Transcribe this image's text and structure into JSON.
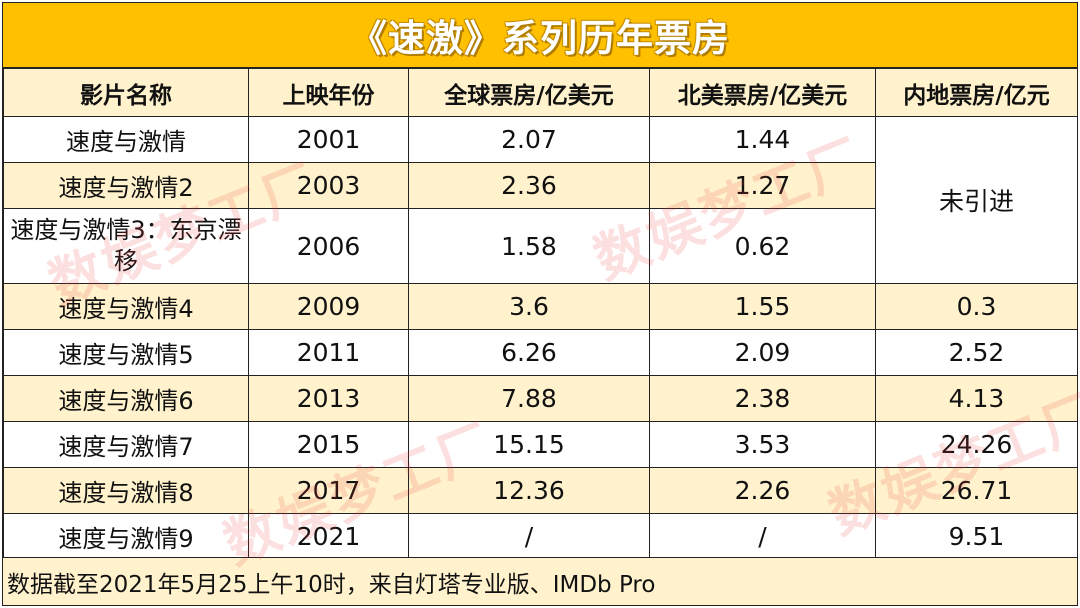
{
  "chart_data": {
    "type": "table",
    "title": "《速激》系列历年票房",
    "columns": [
      "影片名称",
      "上映年份",
      "全球票房/亿美元",
      "北美票房/亿美元",
      "内地票房/亿元"
    ],
    "rows": [
      {
        "name": "速度与激情",
        "year": "2001",
        "global": "2.07",
        "na": "1.44"
      },
      {
        "name": "速度与激情2",
        "year": "2003",
        "global": "2.36",
        "na": "1.27"
      },
      {
        "name": "速度与激情3：东京漂移",
        "year": "2006",
        "global": "1.58",
        "na": "0.62"
      },
      {
        "name": "速度与激情4",
        "year": "2009",
        "global": "3.6",
        "na": "1.55",
        "mainland": "0.3"
      },
      {
        "name": "速度与激情5",
        "year": "2011",
        "global": "6.26",
        "na": "2.09",
        "mainland": "2.52"
      },
      {
        "name": "速度与激情6",
        "year": "2013",
        "global": "7.88",
        "na": "2.38",
        "mainland": "4.13"
      },
      {
        "name": "速度与激情7",
        "year": "2015",
        "global": "15.15",
        "na": "3.53",
        "mainland": "24.26"
      },
      {
        "name": "速度与激情8",
        "year": "2017",
        "global": "12.36",
        "na": "2.26",
        "mainland": "26.71"
      },
      {
        "name": "速度与激情9",
        "year": "2021",
        "global": "/",
        "na": "/",
        "mainland": "9.51"
      }
    ],
    "merged_mainland_note": "未引进",
    "footnote": "数据截至2021年5月25上午10时，来自灯塔专业版、IMDb Pro"
  },
  "watermark": {
    "text": "数娱梦工厂"
  },
  "colors": {
    "title_bg": "#FFC000",
    "alt_row_bg": "#FFF2CC",
    "border": "#222222",
    "watermark": "#EB3C3C"
  }
}
